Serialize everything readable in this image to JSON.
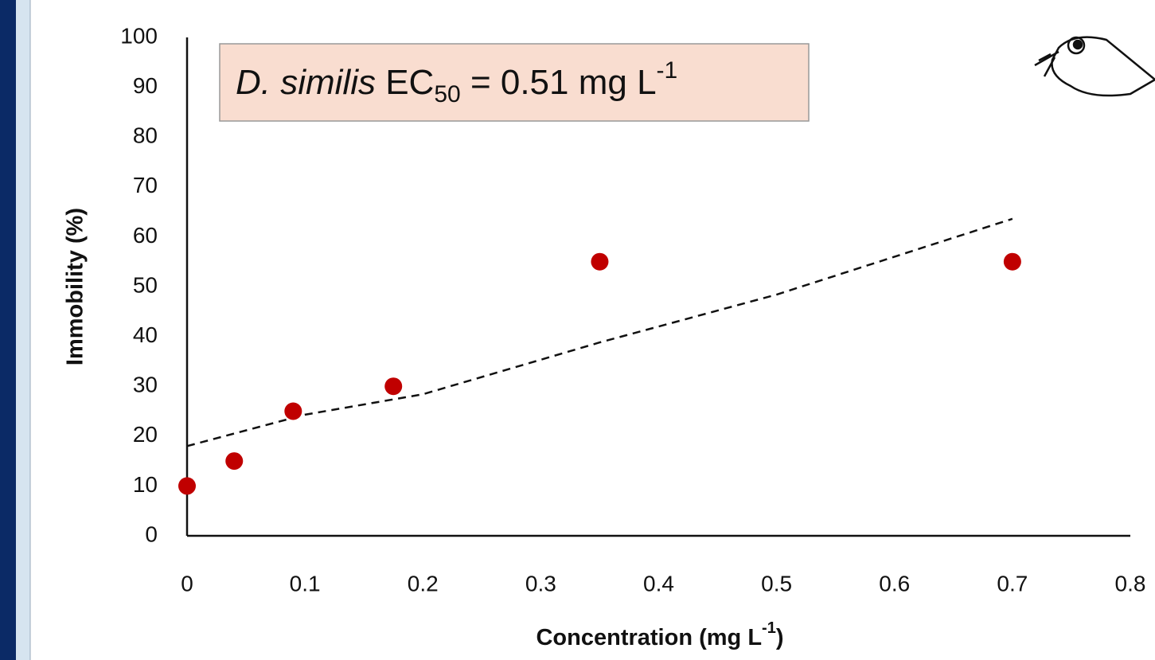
{
  "chart_data": {
    "type": "scatter",
    "x_label": [
      "Concentration (mg L",
      "-1",
      ")"
    ],
    "y_label": "Immobility (%)",
    "annotation": [
      "D. similis",
      " EC",
      "50",
      " = 0.51 mg L",
      "-1"
    ],
    "series": [
      {
        "type": "scatter",
        "color": "#c00000",
        "x": [
          0,
          0.04,
          0.09,
          0.175,
          0.35,
          0.7
        ],
        "values": [
          10,
          15,
          25,
          30,
          55,
          55
        ]
      },
      {
        "type": "line",
        "color": "#111111",
        "dashed": true,
        "x": [
          0,
          0.1,
          0.2,
          0.35,
          0.5,
          0.7
        ],
        "values": [
          18,
          24.3,
          28.4,
          38.8,
          48.4,
          63.6
        ]
      }
    ],
    "xlim": [
      0,
      0.8
    ],
    "xticks": [
      0,
      0.1,
      0.2,
      0.3,
      0.4,
      0.5,
      0.6,
      0.7,
      0.8
    ],
    "ylim": [
      0,
      100
    ],
    "yticks": [
      0,
      10,
      20,
      30,
      40,
      50,
      60,
      70,
      80,
      90,
      100
    ],
    "grid": false
  }
}
